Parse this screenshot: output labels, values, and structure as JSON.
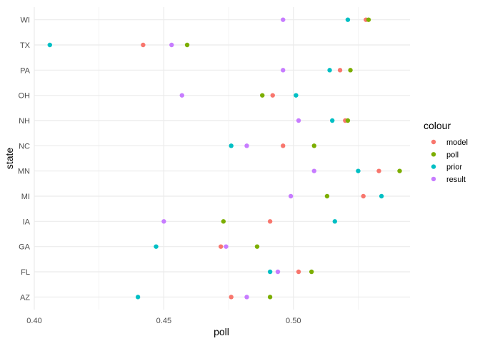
{
  "chart_data": {
    "type": "scatter",
    "xlabel": "poll",
    "ylabel": "state",
    "xlim": [
      0.4,
      0.545
    ],
    "x_ticks": [
      "0.40",
      "0.45",
      "0.50"
    ],
    "x_tick_values": [
      0.4,
      0.45,
      0.5
    ],
    "categories": [
      "WI",
      "TX",
      "PA",
      "OH",
      "NH",
      "NC",
      "MN",
      "MI",
      "IA",
      "GA",
      "FL",
      "AZ"
    ],
    "grid": true,
    "legend": {
      "title": "colour",
      "placement": "right",
      "entries": [
        "model",
        "poll",
        "prior",
        "result"
      ]
    },
    "series": [
      {
        "name": "model",
        "color": "#F8766D",
        "values": [
          0.528,
          0.442,
          0.518,
          0.492,
          0.52,
          0.496,
          0.533,
          0.527,
          0.491,
          0.472,
          0.502,
          0.476
        ]
      },
      {
        "name": "poll",
        "color": "#7CAE00",
        "values": [
          0.529,
          0.459,
          0.522,
          0.488,
          0.521,
          0.508,
          0.541,
          0.513,
          0.473,
          0.486,
          0.507,
          0.491
        ]
      },
      {
        "name": "prior",
        "color": "#00BFC4",
        "values": [
          0.521,
          0.406,
          0.514,
          0.501,
          0.515,
          0.476,
          0.525,
          0.534,
          0.516,
          0.447,
          0.491,
          0.44
        ]
      },
      {
        "name": "result",
        "color": "#C77CFF",
        "values": [
          0.496,
          0.453,
          0.496,
          0.457,
          0.502,
          0.482,
          0.508,
          0.499,
          0.45,
          0.474,
          0.494,
          0.482
        ]
      }
    ]
  }
}
